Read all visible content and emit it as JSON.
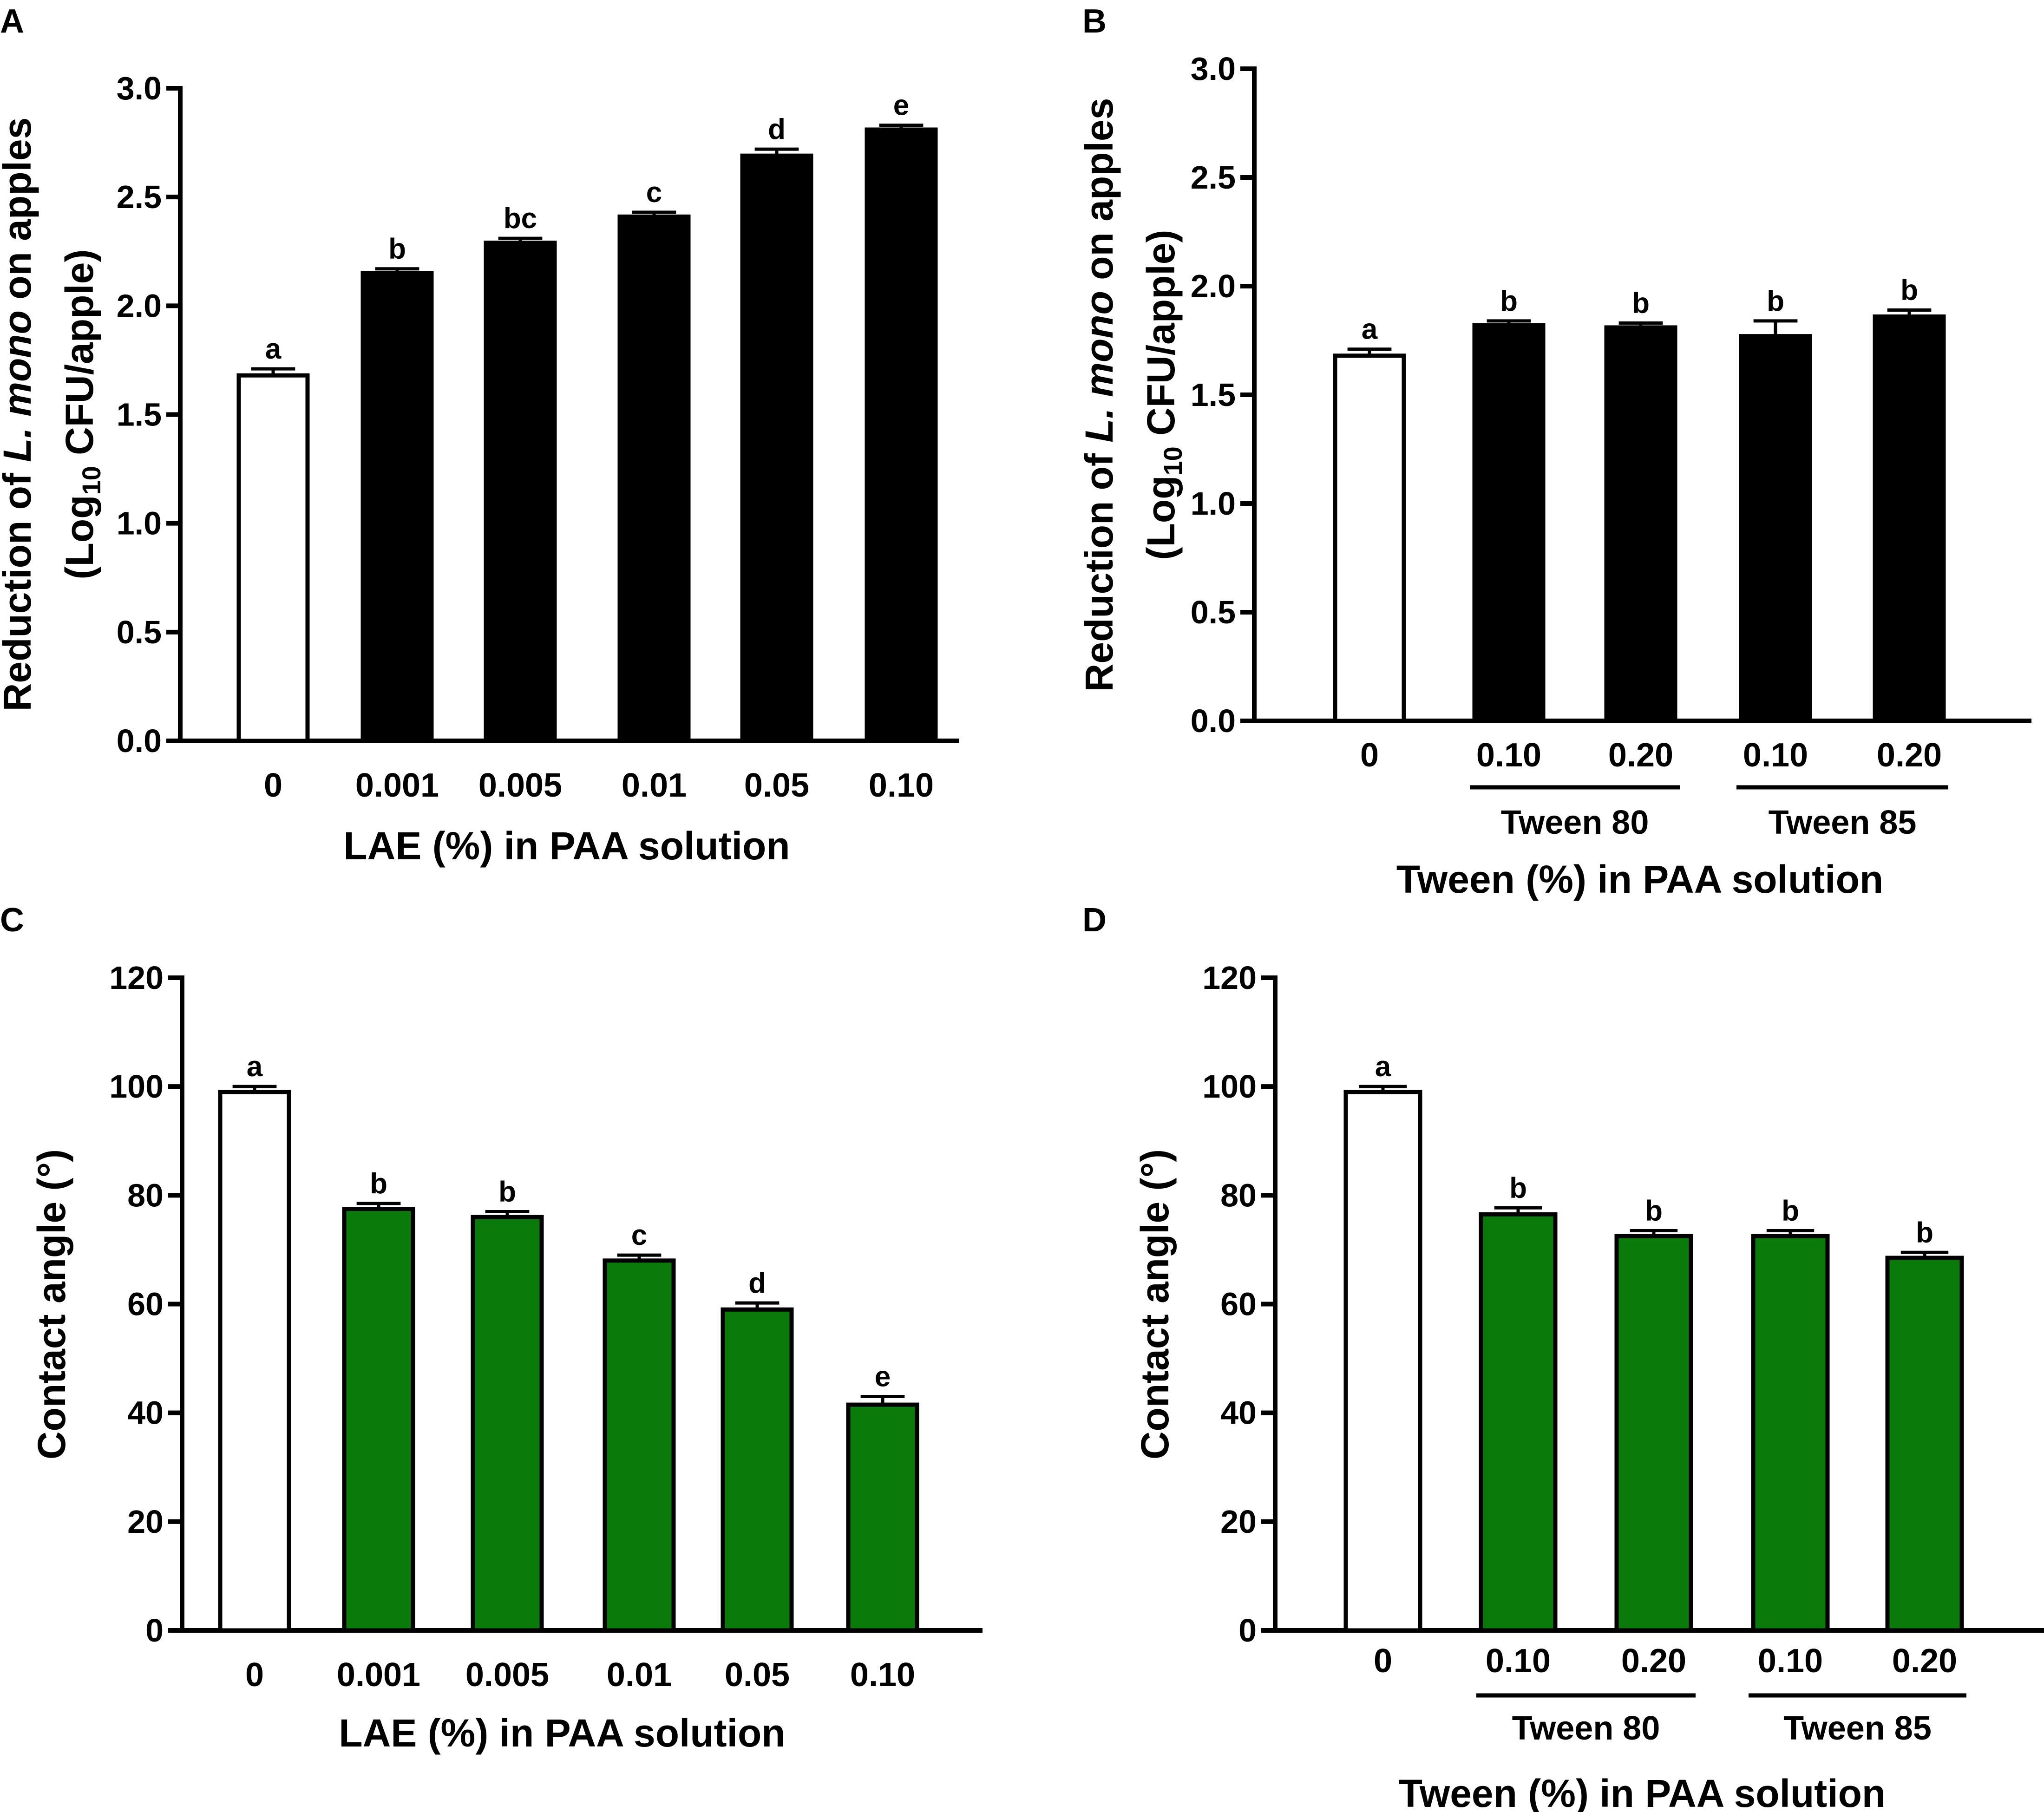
{
  "chart_data": [
    {
      "panel": "A",
      "type": "bar",
      "categories": [
        "0",
        "0.001",
        "0.005",
        "0.01",
        "0.05",
        "0.10"
      ],
      "values": [
        1.68,
        2.15,
        2.29,
        2.41,
        2.69,
        2.81
      ],
      "errors": [
        0.03,
        0.02,
        0.02,
        0.02,
        0.03,
        0.02
      ],
      "significance": [
        "a",
        "b",
        "bc",
        "c",
        "d",
        "e"
      ],
      "bar_colors": [
        "#ffffff",
        "#000000",
        "#000000",
        "#000000",
        "#000000",
        "#000000"
      ],
      "ylim": [
        0,
        3.0
      ],
      "yticks": [
        0,
        0.5,
        1.0,
        1.5,
        2.0,
        2.5,
        3.0
      ],
      "ytick_labels": [
        "0.0",
        "0.5",
        "1.0",
        "1.5",
        "2.0",
        "2.5",
        "3.0"
      ],
      "ylabel_line1_pre": "Reduction of ",
      "ylabel_line1_italic": "L. mono",
      "ylabel_line1_post": " on apples",
      "ylabel_line2_pre": "(Log",
      "ylabel_line2_sub": "10",
      "ylabel_line2_post": " CFU/apple)",
      "xlabel": "LAE (%) in PAA solution",
      "groups": []
    },
    {
      "panel": "B",
      "type": "bar",
      "categories": [
        "0",
        "0.10",
        "0.20",
        "0.10",
        "0.20"
      ],
      "values": [
        1.68,
        1.82,
        1.81,
        1.77,
        1.86
      ],
      "errors": [
        0.03,
        0.02,
        0.02,
        0.07,
        0.03
      ],
      "significance": [
        "a",
        "b",
        "b",
        "b",
        "b"
      ],
      "bar_colors": [
        "#ffffff",
        "#000000",
        "#000000",
        "#000000",
        "#000000"
      ],
      "ylim": [
        0,
        3.0
      ],
      "yticks": [
        0,
        0.5,
        1.0,
        1.5,
        2.0,
        2.5,
        3.0
      ],
      "ytick_labels": [
        "0.0",
        "0.5",
        "1.0",
        "1.5",
        "2.0",
        "2.5",
        "3.0"
      ],
      "ylabel_line1_pre": "Reduction of ",
      "ylabel_line1_italic": "L. mono",
      "ylabel_line1_post": " on apples",
      "ylabel_line2_pre": "(Log",
      "ylabel_line2_sub": "10",
      "ylabel_line2_post": " CFU/apple)",
      "xlabel": "Tween (%) in PAA solution",
      "groups": [
        {
          "label": "Tween 80",
          "from": 1,
          "to": 2
        },
        {
          "label": "Tween 85",
          "from": 3,
          "to": 4
        }
      ]
    },
    {
      "panel": "C",
      "type": "bar",
      "categories": [
        "0",
        "0.001",
        "0.005",
        "0.01",
        "0.05",
        "0.10"
      ],
      "values": [
        99,
        77.5,
        76,
        68,
        59,
        41.5
      ],
      "errors": [
        1.0,
        1.0,
        1.0,
        1.0,
        1.2,
        1.5
      ],
      "significance": [
        "a",
        "b",
        "b",
        "c",
        "d",
        "e"
      ],
      "bar_colors": [
        "#ffffff",
        "#0a7a0a",
        "#0a7a0a",
        "#0a7a0a",
        "#0a7a0a",
        "#0a7a0a"
      ],
      "ylim": [
        0,
        120
      ],
      "yticks": [
        0,
        20,
        40,
        60,
        80,
        100,
        120
      ],
      "ytick_labels": [
        "0",
        "20",
        "40",
        "60",
        "80",
        "100",
        "120"
      ],
      "ylabel": "Contact angle (°)",
      "xlabel": "LAE (%) in PAA solution",
      "groups": []
    },
    {
      "panel": "D",
      "type": "bar",
      "categories": [
        "0",
        "0.10",
        "0.20",
        "0.10",
        "0.20"
      ],
      "values": [
        99,
        76.5,
        72.5,
        72.5,
        68.5
      ],
      "errors": [
        1.0,
        1.2,
        1.0,
        1.0,
        1.0
      ],
      "significance": [
        "a",
        "b",
        "b",
        "b",
        "b"
      ],
      "bar_colors": [
        "#ffffff",
        "#0a7a0a",
        "#0a7a0a",
        "#0a7a0a",
        "#0a7a0a"
      ],
      "ylim": [
        0,
        120
      ],
      "yticks": [
        0,
        20,
        40,
        60,
        80,
        100,
        120
      ],
      "ytick_labels": [
        "0",
        "20",
        "40",
        "60",
        "80",
        "100",
        "120"
      ],
      "ylabel": "Contact angle (°)",
      "xlabel": "Tween (%) in PAA solution",
      "groups": [
        {
          "label": "Tween 80",
          "from": 1,
          "to": 2
        },
        {
          "label": "Tween 85",
          "from": 3,
          "to": 4
        }
      ]
    }
  ]
}
